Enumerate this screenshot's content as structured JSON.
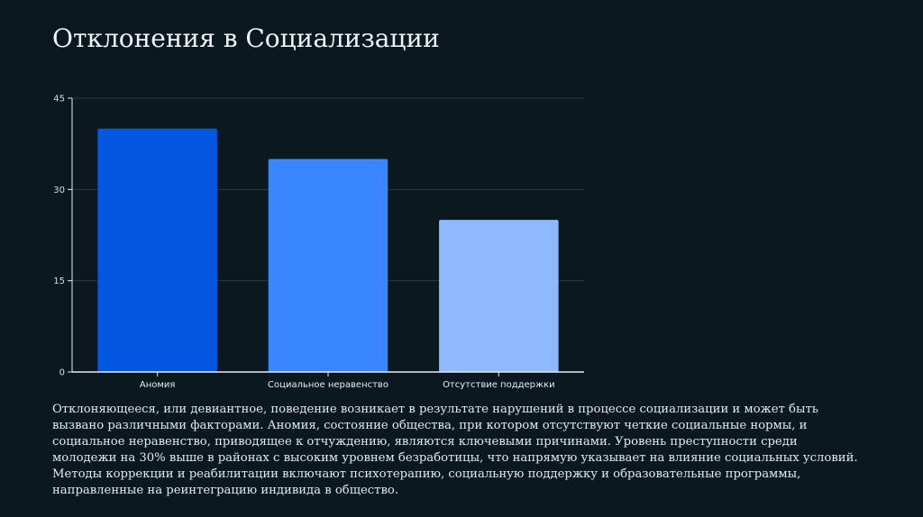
{
  "slide": {
    "title": "Отклонения в Социализации",
    "description": "Отклоняющееся, или девиантное, поведение возникает в результате нарушений в процессе социализации и может быть вызвано различными факторами. Аномия, состояние общества, при котором отсутствуют четкие социальные нормы, и социальное неравенство, приводящее к отчуждению, являются ключевыми причинами. Уровень преступности среди молодежи на 30% выше в районах с высоким уровнем безработицы, что напрямую указывает на влияние социальных условий. Методы коррекции и реабилитации включают психотерапию, социальную поддержку и образовательные программы, направленные на реинтеграцию индивида в общество."
  },
  "chart_data": {
    "type": "bar",
    "categories": [
      "Аномия",
      "Социальное неравенство",
      "Отсутствие поддержки"
    ],
    "values": [
      40,
      35,
      25
    ],
    "colors": [
      "#0457e0",
      "#3a86ff",
      "#8fb9ff"
    ],
    "ylim": [
      0,
      45
    ],
    "yticks": [
      0,
      15,
      30,
      45
    ],
    "grid": true,
    "background": "#0b1820",
    "grid_color": "#2a3640",
    "axis_color": "#e6ecf0"
  }
}
